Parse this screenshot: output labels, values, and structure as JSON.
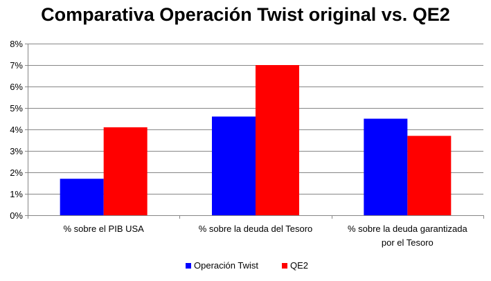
{
  "chart_data": {
    "type": "bar",
    "title": "Comparativa Operación Twist original vs. QE2",
    "categories": [
      [
        "% sobre el PIB USA"
      ],
      [
        "% sobre la deuda del Tesoro"
      ],
      [
        "% sobre la deuda garantizada",
        "por el Tesoro"
      ]
    ],
    "series": [
      {
        "name": "Operación Twist",
        "color": "#0000ff",
        "values": [
          1.7,
          4.6,
          4.5
        ]
      },
      {
        "name": "QE2",
        "color": "#ff0000",
        "values": [
          4.1,
          7.0,
          3.7
        ]
      }
    ],
    "ylim": [
      0,
      8
    ],
    "yticks": [
      "0%",
      "1%",
      "2%",
      "3%",
      "4%",
      "5%",
      "6%",
      "7%",
      "8%"
    ],
    "grid": true,
    "legend_position": "bottom"
  }
}
